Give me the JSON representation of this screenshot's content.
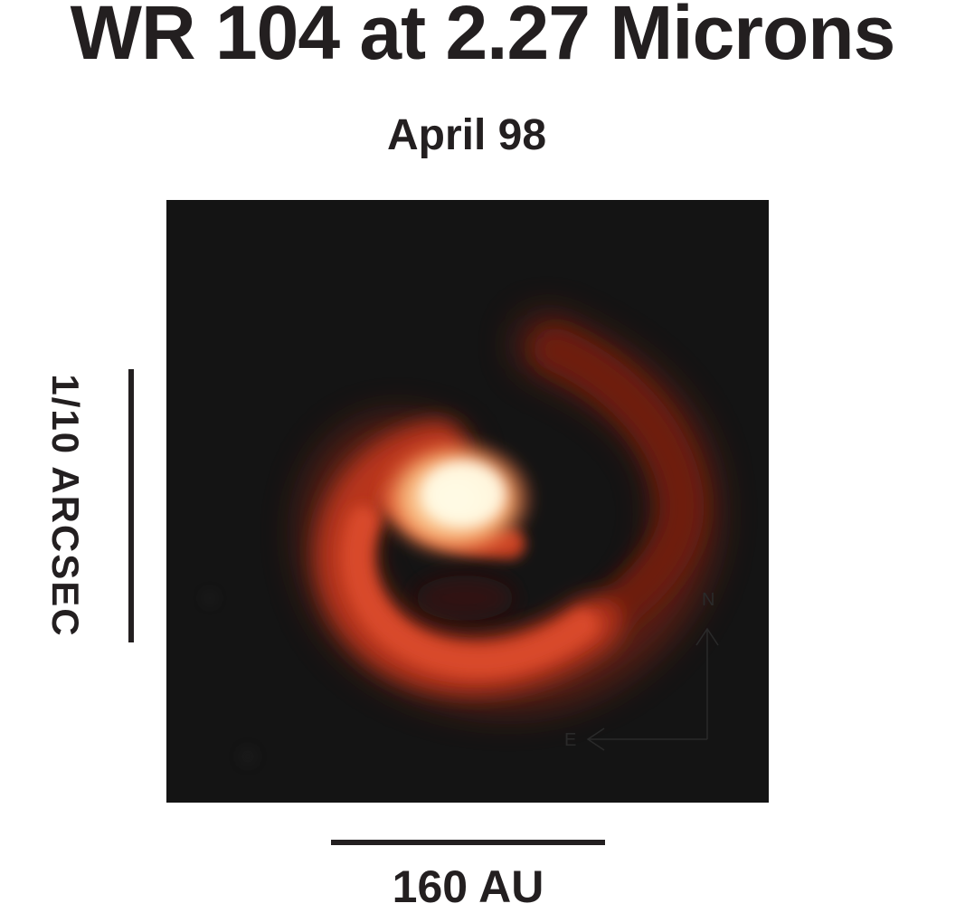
{
  "title": "WR 104 at 2.27 Microns",
  "subtitle": "April 98",
  "scale_vertical": {
    "label": "1/10 ARCSEC"
  },
  "scale_horizontal": {
    "label": "160 AU"
  },
  "compass": {
    "north": "N",
    "east": "E"
  },
  "colors": {
    "background": "#141414",
    "glow_core": "#fffbe6",
    "glow_mid": "#e8542a",
    "glow_outer": "#6e1a0e"
  },
  "image_subject": "pinwheel-dust-spiral"
}
